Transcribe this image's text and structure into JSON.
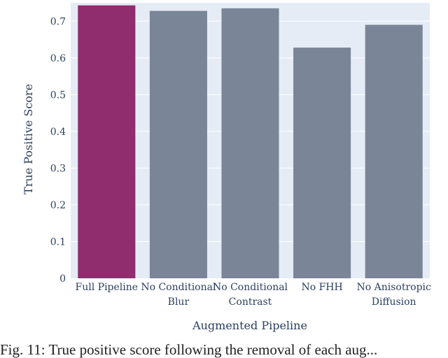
{
  "chart_data": {
    "type": "bar",
    "title": "",
    "xlabel": "Augmented Pipeline",
    "ylabel": "True Positive Score",
    "ylim": [
      0,
      0.75
    ],
    "yticks": [
      0,
      0.1,
      0.2,
      0.3,
      0.4,
      0.5,
      0.6,
      0.7
    ],
    "ytick_labels": [
      "0",
      "0.1",
      "0.2",
      "0.3",
      "0.4",
      "0.5",
      "0.6",
      "0.7"
    ],
    "grid": true,
    "categories": [
      [
        "Full Pipeline"
      ],
      [
        "No Conditional",
        "Blur"
      ],
      [
        "No Conditional",
        "Contrast"
      ],
      [
        "No FHH"
      ],
      [
        "No Anisotropic",
        "Diffusion"
      ]
    ],
    "values": [
      0.743,
      0.728,
      0.735,
      0.628,
      0.69
    ],
    "colors": [
      "#8f2d6e",
      "#7a8597",
      "#7a8597",
      "#7a8597",
      "#7a8597"
    ],
    "plot_bg": "#e5ecf6"
  },
  "caption": "Fig. 11: True positive score following the removal of each aug..."
}
